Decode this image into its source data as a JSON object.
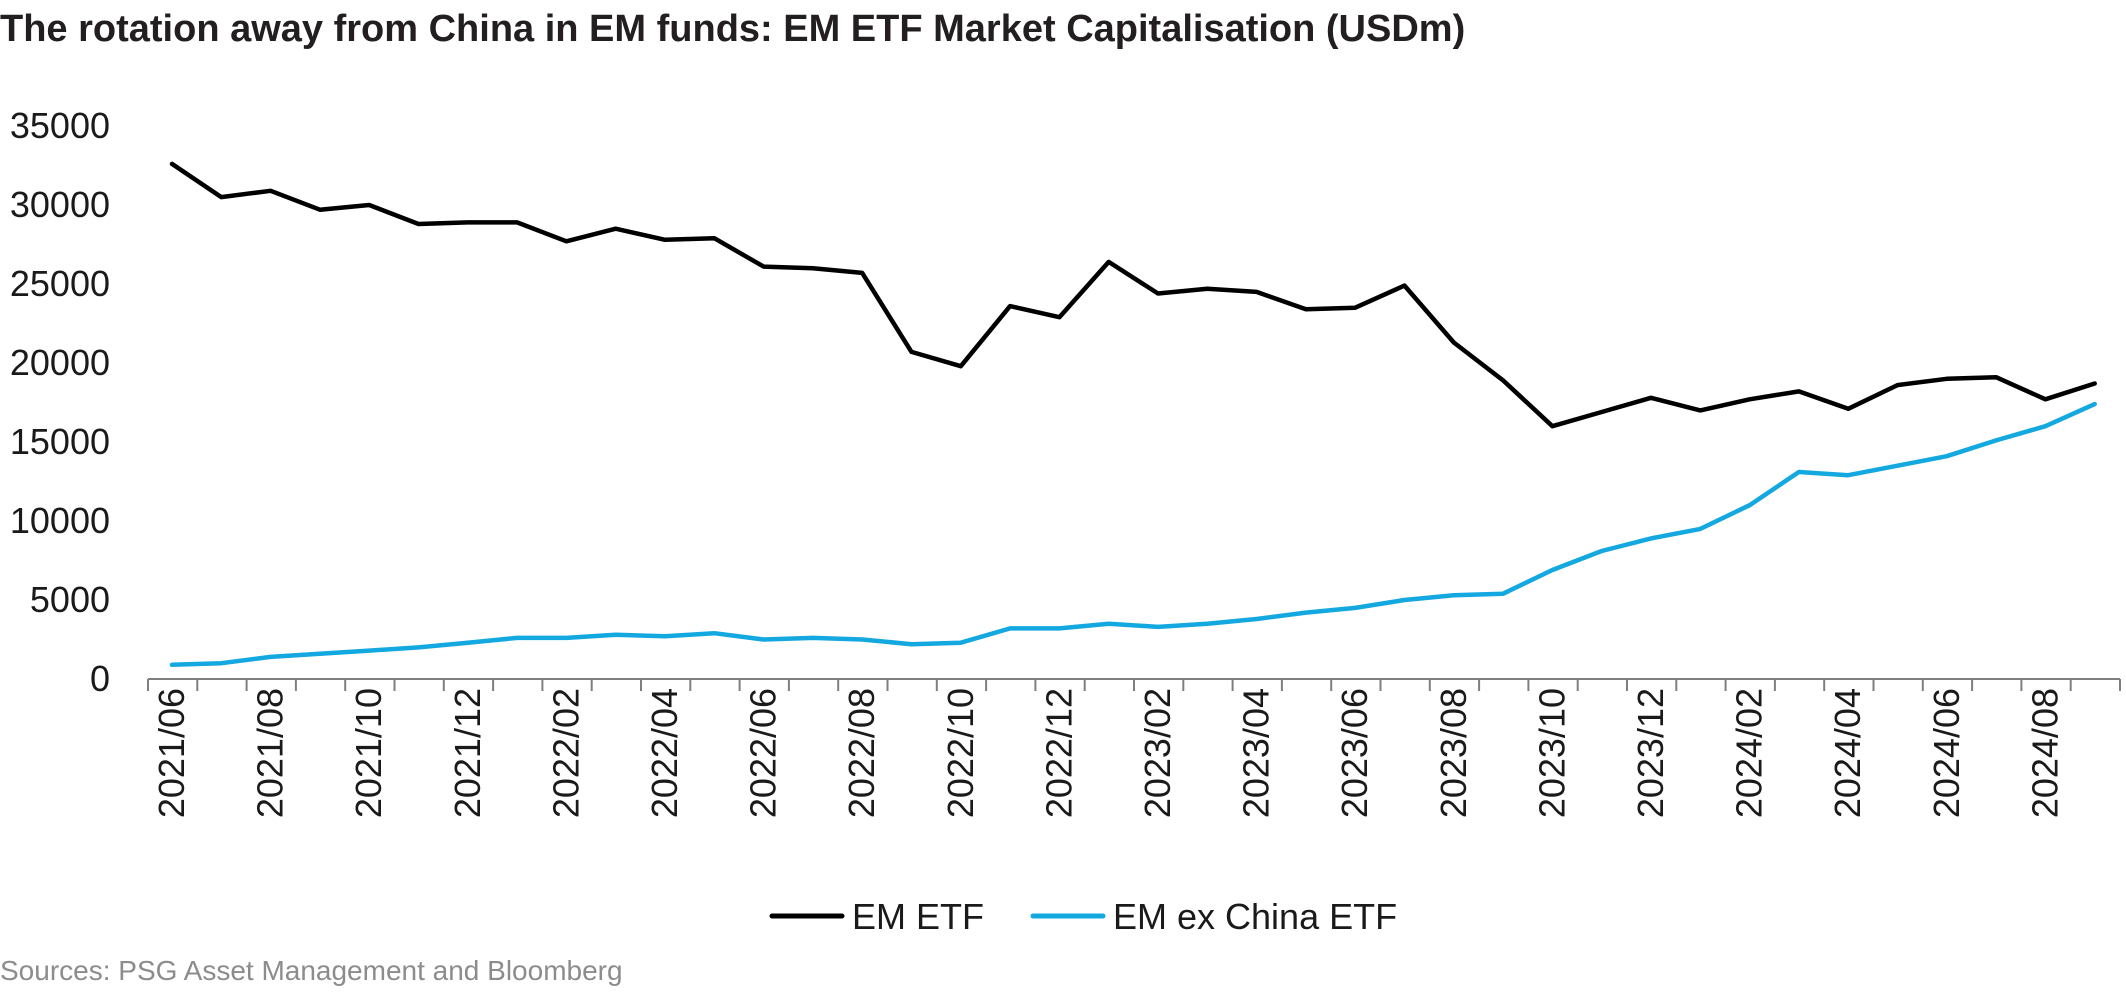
{
  "title": "The rotation away from China in EM funds: EM ETF Market Capitalisation (USDm)",
  "source": "Sources: PSG Asset Management and Bloomberg",
  "colors": {
    "em_etf": "#000000",
    "em_ex_china": "#14a8e0",
    "axis": "#7f7f7f"
  },
  "chart_data": {
    "type": "line",
    "title": "The rotation away from China in EM funds: EM ETF Market Capitalisation (USDm)",
    "xlabel": "",
    "ylabel": "",
    "ylim": [
      0,
      35000
    ],
    "yticks": [
      0,
      5000,
      10000,
      15000,
      20000,
      25000,
      30000,
      35000
    ],
    "grid": false,
    "legend_position": "bottom-center",
    "x_tick_labels": [
      "2021/06",
      "2021/08",
      "2021/10",
      "2021/12",
      "2022/02",
      "2022/04",
      "2022/06",
      "2022/08",
      "2022/10",
      "2022/12",
      "2023/02",
      "2023/04",
      "2023/06",
      "2023/08",
      "2023/10",
      "2023/12",
      "2024/02",
      "2024/04",
      "2024/06",
      "2024/08"
    ],
    "x": [
      "2021/06",
      "2021/07",
      "2021/08",
      "2021/09",
      "2021/10",
      "2021/11",
      "2021/12",
      "2022/01",
      "2022/02",
      "2022/03",
      "2022/04",
      "2022/05",
      "2022/06",
      "2022/07",
      "2022/08",
      "2022/09",
      "2022/10",
      "2022/11",
      "2022/12",
      "2023/01",
      "2023/02",
      "2023/03",
      "2023/04",
      "2023/05",
      "2023/06",
      "2023/07",
      "2023/08",
      "2023/09",
      "2023/10",
      "2023/11",
      "2023/12",
      "2024/01",
      "2024/02",
      "2024/03",
      "2024/04",
      "2024/05",
      "2024/06",
      "2024/07",
      "2024/08",
      "2024/09"
    ],
    "series": [
      {
        "name": "EM ETF",
        "values": [
          32600,
          30500,
          30900,
          29700,
          30000,
          28800,
          28900,
          28900,
          27700,
          28500,
          27800,
          27900,
          26100,
          26000,
          25700,
          20700,
          19800,
          23600,
          22900,
          26400,
          24400,
          24700,
          24500,
          23400,
          23500,
          24900,
          21300,
          18900,
          16000,
          16900,
          17800,
          17000,
          17700,
          18200,
          17100,
          18600,
          19000,
          19100,
          17700,
          18700
        ]
      },
      {
        "name": "EM ex China ETF",
        "values": [
          900,
          1000,
          1400,
          1600,
          1800,
          2000,
          2300,
          2600,
          2600,
          2800,
          2700,
          2900,
          2500,
          2600,
          2500,
          2200,
          2300,
          3200,
          3200,
          3500,
          3300,
          3500,
          3800,
          4200,
          4500,
          5000,
          5300,
          5400,
          6900,
          8100,
          8900,
          9500,
          11000,
          13100,
          12900,
          13500,
          14100,
          15100,
          16000,
          17400
        ]
      }
    ]
  }
}
